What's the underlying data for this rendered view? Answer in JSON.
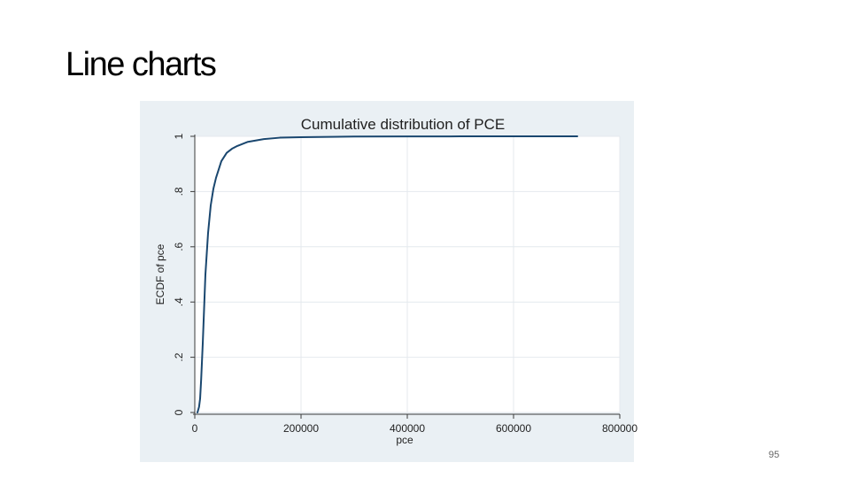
{
  "slide": {
    "title": "Line charts",
    "page_number": "95"
  },
  "colors": {
    "panel_background": "#eaf0f4",
    "plot_background": "#ffffff",
    "gridline": "#e4e9ee",
    "axis": "#3a3a3a",
    "series_line": "#1a476f"
  },
  "chart_data": {
    "type": "line",
    "title": "Cumulative distribution of PCE",
    "xlabel": "pce",
    "ylabel": "ECDF of pce",
    "xlim": [
      0,
      800000
    ],
    "ylim": [
      0,
      1
    ],
    "x_ticks": [
      0,
      200000,
      400000,
      600000,
      800000
    ],
    "x_tick_labels": [
      "0",
      "200000",
      "400000",
      "600000",
      "800000"
    ],
    "y_ticks": [
      0,
      0.2,
      0.4,
      0.6,
      0.8,
      1
    ],
    "y_tick_labels": [
      "0",
      ".2",
      ".4",
      ".6",
      ".8",
      "1"
    ],
    "grid": true,
    "legend": "none",
    "series": [
      {
        "x": [
          5000,
          8000,
          10000,
          12000,
          15000,
          18000,
          20000,
          25000,
          30000,
          35000,
          40000,
          45000,
          50000,
          60000,
          70000,
          80000,
          100000,
          130000,
          160000,
          200000,
          300000,
          400000,
          500000,
          600000,
          720000
        ],
        "y": [
          0.0,
          0.02,
          0.05,
          0.12,
          0.25,
          0.4,
          0.5,
          0.65,
          0.75,
          0.81,
          0.85,
          0.88,
          0.91,
          0.94,
          0.955,
          0.965,
          0.98,
          0.99,
          0.995,
          0.997,
          0.999,
          0.9995,
          0.9998,
          0.9999,
          1.0
        ]
      }
    ]
  }
}
